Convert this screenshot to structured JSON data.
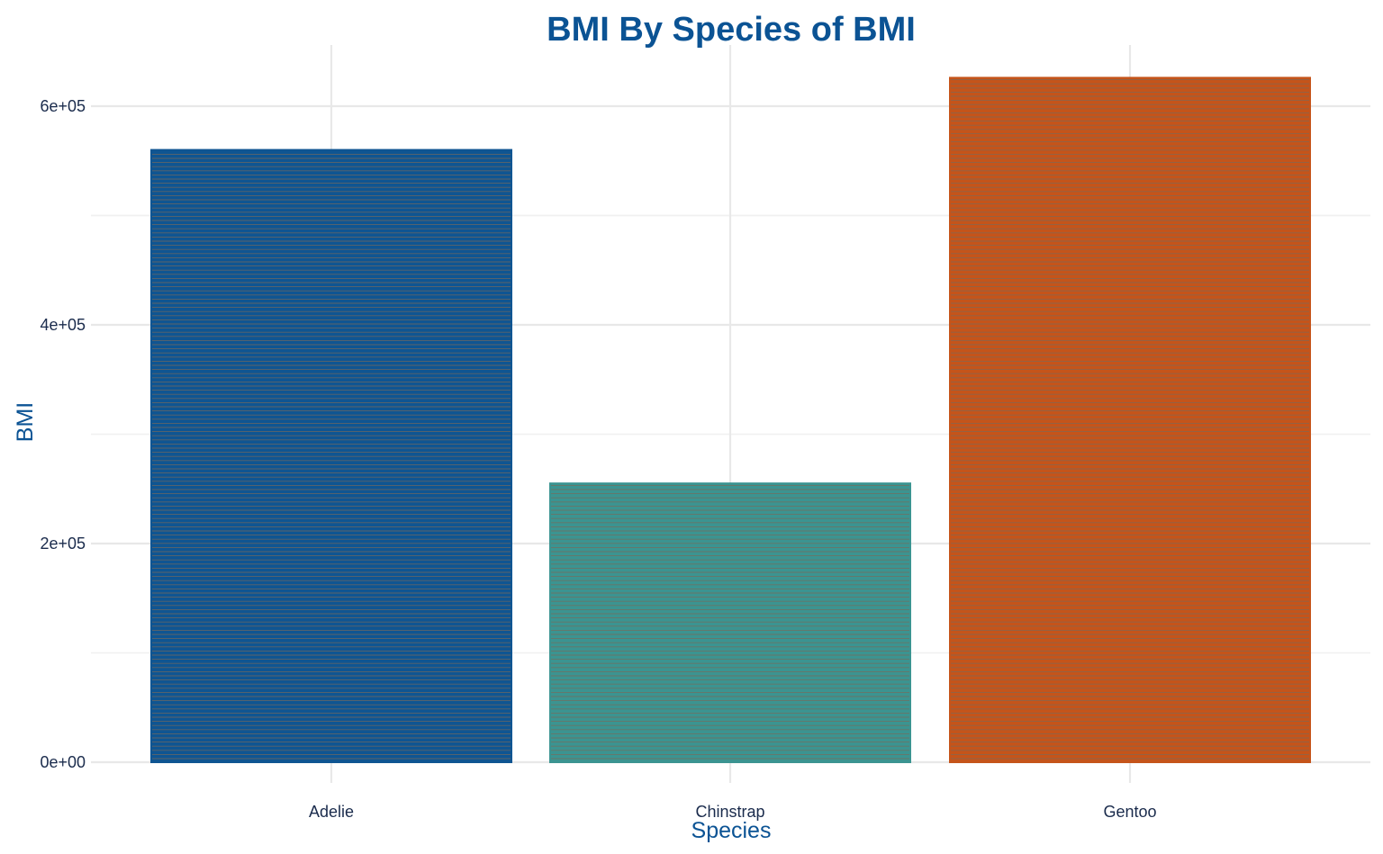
{
  "chart_data": {
    "type": "bar",
    "title": "BMI By Species of BMI",
    "xlabel": "Species",
    "ylabel": "BMI",
    "categories": [
      "Adelie",
      "Chinstrap",
      "Gentoo"
    ],
    "values": [
      560000,
      255000,
      626000
    ],
    "ylim": [
      -25000,
      660000
    ],
    "yticks": [
      0,
      200000,
      400000,
      600000
    ],
    "ytick_labels": [
      "0e+00",
      "2e+05",
      "4e+05",
      "6e+05"
    ],
    "grid": true,
    "legend": "none",
    "colors": {
      "Adelie": "#0f5592",
      "Chinstrap": "#3b9491",
      "Gentoo": "#c5541a"
    },
    "stripe_color": "#7a6a5a",
    "title_color": "#0b5394",
    "tick_color": "#1a2b4c"
  }
}
